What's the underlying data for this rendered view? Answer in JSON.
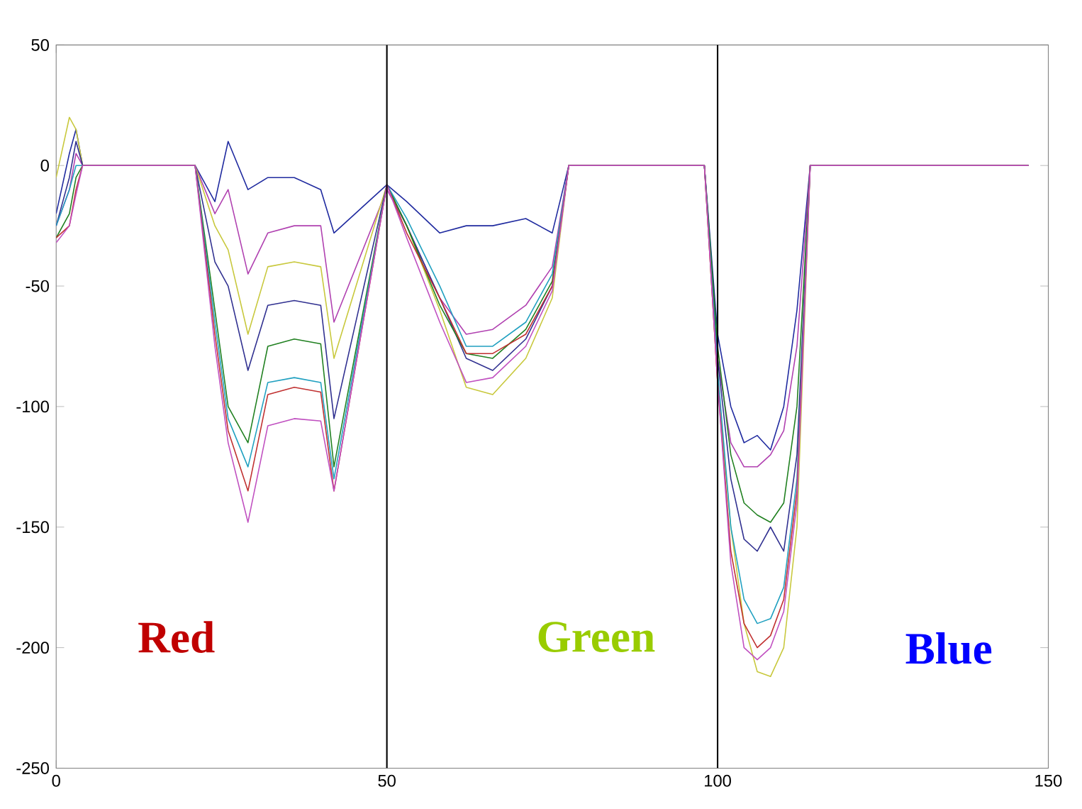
{
  "chart_data": {
    "type": "line",
    "x": [
      0,
      2,
      3,
      4,
      5,
      19,
      21,
      24,
      26,
      29,
      32,
      36,
      40,
      42,
      50,
      53,
      58,
      62,
      66,
      71,
      75,
      77.5,
      98,
      100,
      102,
      104,
      106,
      108,
      110,
      112,
      114,
      147
    ],
    "series": [
      {
        "color": "#1f2a9f",
        "values": [
          -20,
          5,
          15,
          0,
          0,
          0,
          0,
          -15,
          10,
          -10,
          -5,
          -5,
          -10,
          -28,
          -8,
          -15,
          -28,
          -25,
          -25,
          -22,
          -28,
          0,
          0,
          -70,
          -100,
          -115,
          -112,
          -118,
          -100,
          -60,
          0,
          0
        ]
      },
      {
        "color": "#b040b0",
        "values": [
          -25,
          -10,
          5,
          0,
          0,
          0,
          0,
          -20,
          -10,
          -45,
          -28,
          -25,
          -25,
          -65,
          -10,
          -25,
          -55,
          -70,
          -68,
          -58,
          -42,
          0,
          0,
          -80,
          -115,
          -125,
          -125,
          -120,
          -110,
          -75,
          0,
          0
        ]
      },
      {
        "color": "#c8c83c",
        "values": [
          -5,
          20,
          15,
          0,
          0,
          0,
          0,
          -25,
          -35,
          -70,
          -42,
          -40,
          -42,
          -80,
          -8,
          -25,
          -60,
          -92,
          -95,
          -80,
          -55,
          0,
          0,
          -90,
          -150,
          -190,
          -210,
          -212,
          -200,
          -150,
          0,
          0
        ]
      },
      {
        "color": "#303090",
        "values": [
          -25,
          -5,
          10,
          0,
          0,
          0,
          0,
          -40,
          -50,
          -85,
          -58,
          -56,
          -58,
          -105,
          -8,
          -25,
          -55,
          -80,
          -85,
          -72,
          -50,
          0,
          0,
          -80,
          -130,
          -155,
          -160,
          -150,
          -160,
          -120,
          0,
          0
        ]
      },
      {
        "color": "#208020",
        "values": [
          -30,
          -20,
          -5,
          0,
          0,
          0,
          0,
          -60,
          -100,
          -115,
          -75,
          -72,
          -74,
          -125,
          -8,
          -25,
          -58,
          -78,
          -80,
          -68,
          -48,
          0,
          0,
          -75,
          -120,
          -140,
          -145,
          -148,
          -140,
          -100,
          0,
          0
        ]
      },
      {
        "color": "#20a0c0",
        "values": [
          -25,
          -10,
          0,
          0,
          0,
          0,
          0,
          -65,
          -105,
          -125,
          -90,
          -88,
          -90,
          -130,
          -8,
          -22,
          -50,
          -75,
          -75,
          -65,
          -45,
          0,
          0,
          -85,
          -150,
          -180,
          -190,
          -188,
          -175,
          -130,
          0,
          0
        ]
      },
      {
        "color": "#c03030",
        "values": [
          -30,
          -25,
          -10,
          0,
          0,
          0,
          0,
          -70,
          -110,
          -135,
          -95,
          -92,
          -94,
          -135,
          -8,
          -28,
          -55,
          -78,
          -78,
          -70,
          -50,
          0,
          0,
          -90,
          -160,
          -190,
          -200,
          -195,
          -180,
          -135,
          0,
          0
        ]
      },
      {
        "color": "#c050c0",
        "values": [
          -32,
          -25,
          -12,
          0,
          0,
          0,
          0,
          -75,
          -115,
          -148,
          -108,
          -105,
          -106,
          -135,
          -8,
          -30,
          -65,
          -90,
          -88,
          -75,
          -52,
          0,
          0,
          -90,
          -165,
          -200,
          -205,
          -200,
          -185,
          -140,
          0,
          0
        ]
      }
    ],
    "xlim": [
      0,
      150
    ],
    "xticks": [
      0,
      50,
      100,
      150
    ],
    "ylim": [
      -250,
      50
    ],
    "yticks": [
      -250,
      -200,
      -150,
      -100,
      -50,
      0,
      50
    ],
    "ref_lines": [
      {
        "axis": "x",
        "value": 50,
        "color": "#000000"
      },
      {
        "axis": "x",
        "value": 100,
        "color": "#000000"
      }
    ],
    "annotations": [
      "Red",
      "Green",
      "Blue"
    ],
    "marker": "none",
    "line_style": "solid"
  }
}
